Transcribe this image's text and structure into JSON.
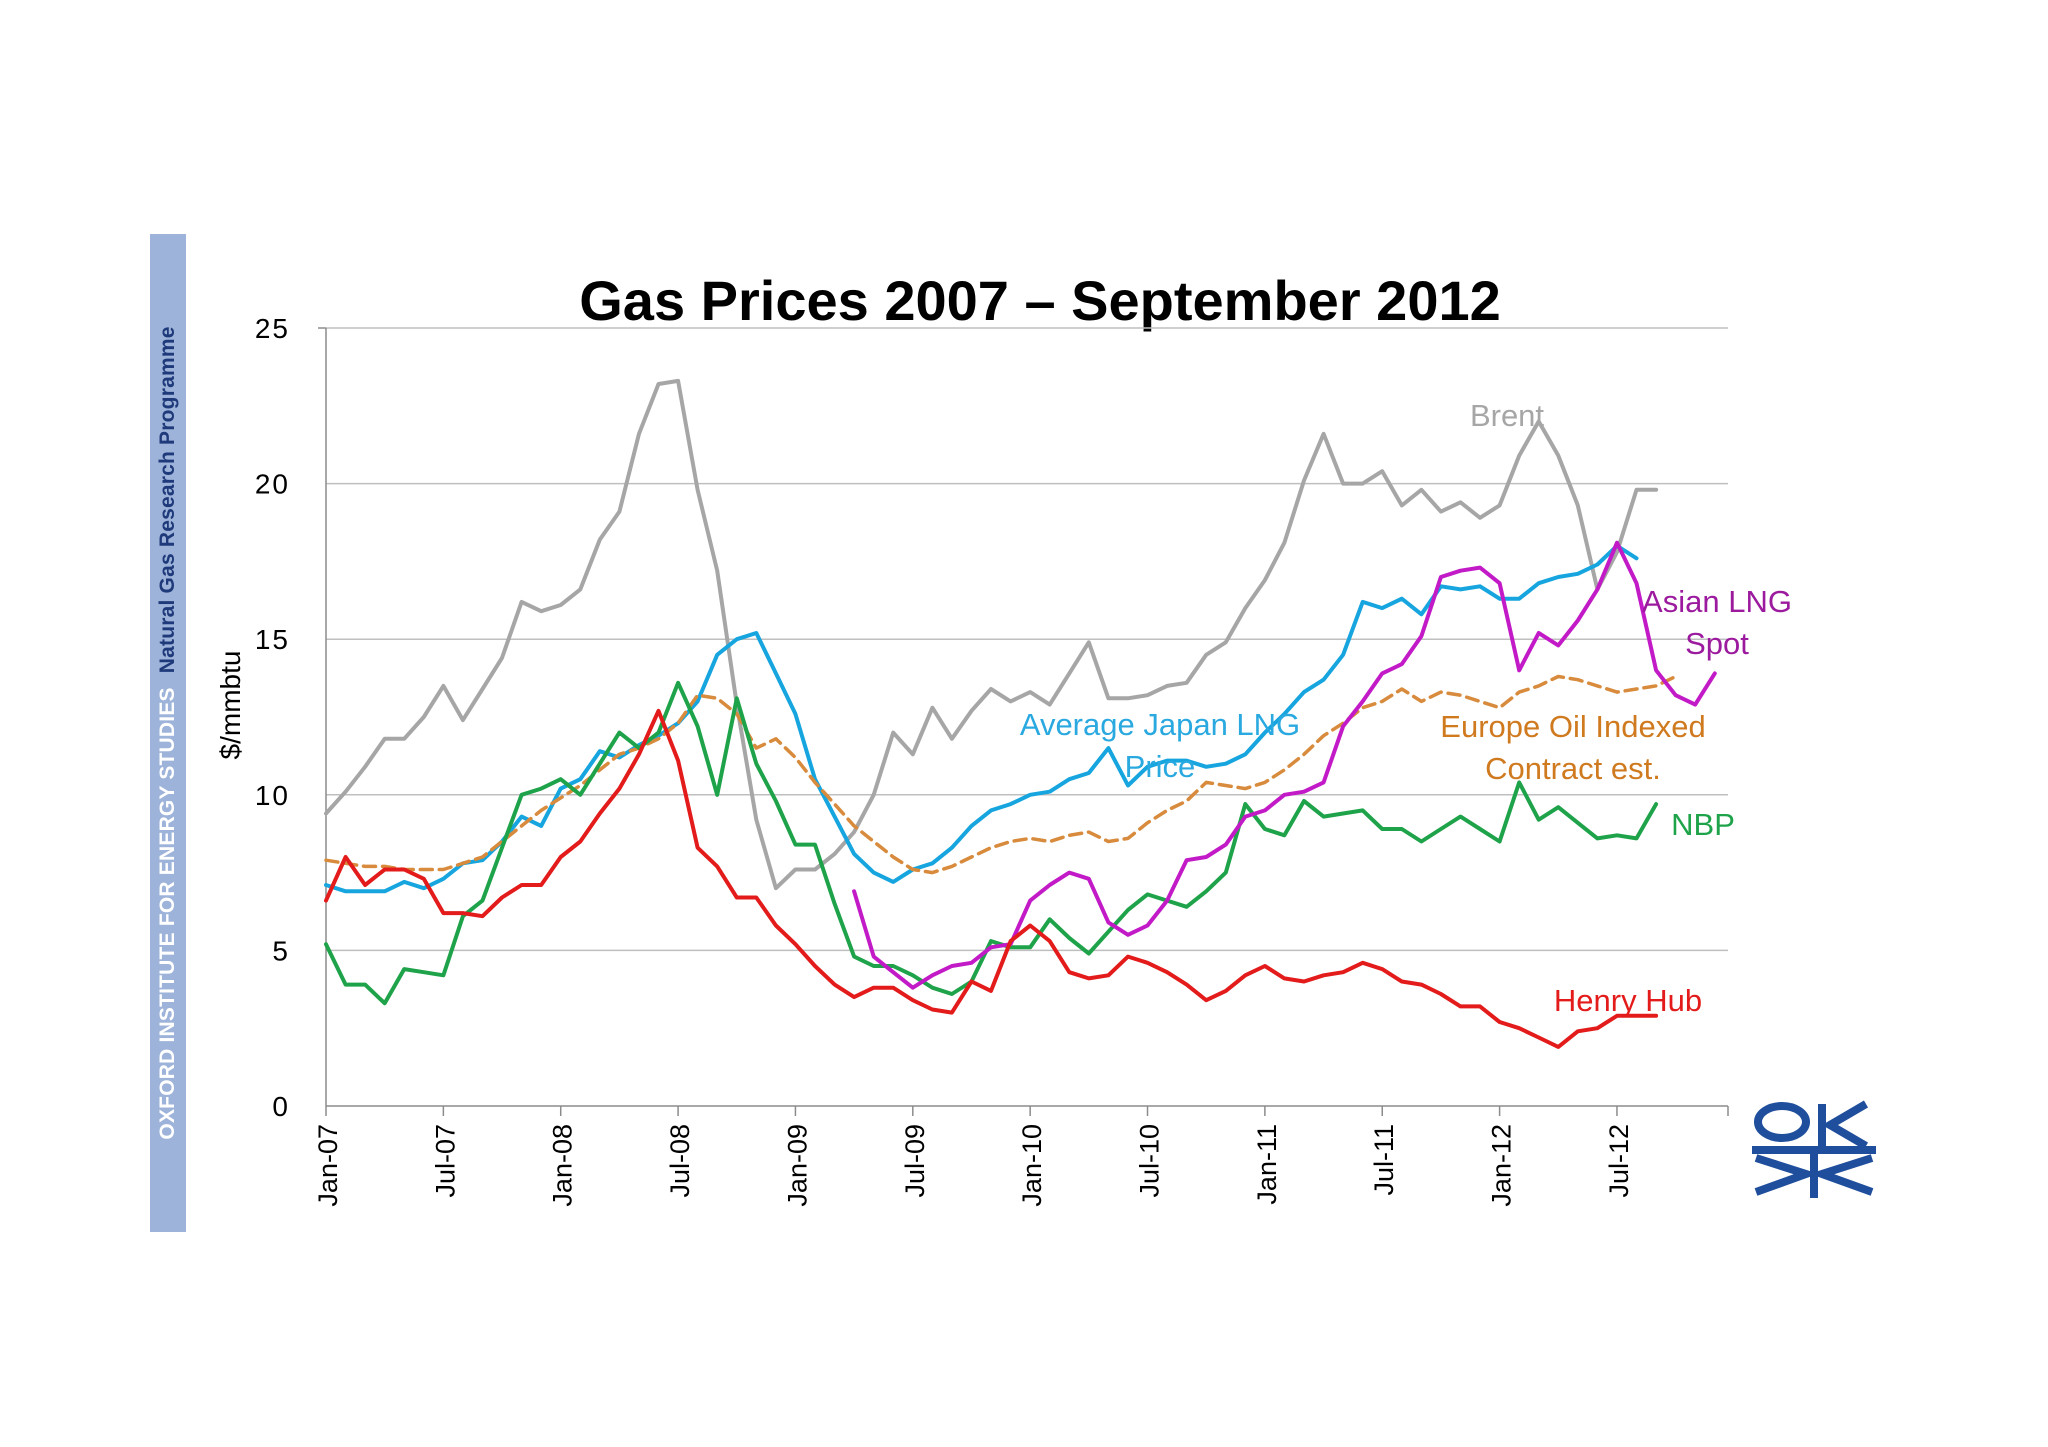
{
  "sidebar": {
    "org": "OXFORD INSTITUTE FOR ENERGY STUDIES",
    "programme": "Natural Gas Research Programme"
  },
  "chart_data": {
    "type": "line",
    "title": "Gas Prices 2007 – September 2012",
    "ylabel": "$/mmbtu",
    "xlabel": "",
    "ylim": [
      0,
      25
    ],
    "yticks": [
      0,
      5,
      10,
      15,
      20,
      25
    ],
    "xticks": [
      "Jan-07",
      "Jul-07",
      "Jan-08",
      "Jul-08",
      "Jan-09",
      "Jul-09",
      "Jan-10",
      "Jul-10",
      "Jan-11",
      "Jul-11",
      "Jan-12",
      "Jul-12"
    ],
    "grid": true,
    "series": [
      {
        "name": "Brent",
        "label_lines": [
          "Brent"
        ],
        "color": "#a6a6a6",
        "dashed": false,
        "start": "2007-01",
        "values": [
          9.4,
          10.1,
          10.9,
          11.8,
          11.8,
          12.5,
          13.5,
          12.4,
          13.4,
          14.4,
          16.2,
          15.9,
          16.1,
          16.6,
          18.2,
          19.1,
          21.6,
          23.2,
          23.3,
          19.8,
          17.2,
          12.9,
          9.2,
          7.0,
          7.6,
          7.6,
          8.1,
          8.8,
          10.0,
          12.0,
          11.3,
          12.8,
          11.8,
          12.7,
          13.4,
          13.0,
          13.3,
          12.9,
          13.9,
          14.9,
          13.1,
          13.1,
          13.2,
          13.5,
          13.6,
          14.5,
          14.9,
          16.0,
          16.9,
          18.1,
          20.1,
          21.6,
          20.0,
          20.0,
          20.4,
          19.3,
          19.8,
          19.1,
          19.4,
          18.9,
          19.3,
          20.9,
          22.0,
          20.9,
          19.3,
          16.6,
          17.8,
          19.8,
          19.8
        ]
      },
      {
        "name": "Average Japan LNG Price",
        "label_lines": [
          "Average Japan LNG",
          "Price"
        ],
        "color": "#16a5de",
        "dashed": false,
        "start": "2007-01",
        "values": [
          7.1,
          6.9,
          6.9,
          6.9,
          7.2,
          7.0,
          7.3,
          7.8,
          7.9,
          8.5,
          9.3,
          9.0,
          10.2,
          10.5,
          11.4,
          11.2,
          11.6,
          11.9,
          12.3,
          13.0,
          14.5,
          15.0,
          15.2,
          13.9,
          12.6,
          10.5,
          9.3,
          8.1,
          7.5,
          7.2,
          7.6,
          7.8,
          8.3,
          9.0,
          9.5,
          9.7,
          10.0,
          10.1,
          10.5,
          10.7,
          11.5,
          10.3,
          10.9,
          11.1,
          11.1,
          10.9,
          11.0,
          11.3,
          12.0,
          12.6,
          13.3,
          13.7,
          14.5,
          16.2,
          16.0,
          16.3,
          15.8,
          16.7,
          16.6,
          16.7,
          16.3,
          16.3,
          16.8,
          17.0,
          17.1,
          17.4,
          18.0,
          17.6
        ]
      },
      {
        "name": "Europe Oil Indexed Contract est.",
        "label_lines": [
          "Europe Oil Indexed",
          "Contract est."
        ],
        "color": "#d88b3d",
        "dashed": true,
        "start": "2007-01",
        "values": [
          7.9,
          7.8,
          7.7,
          7.7,
          7.6,
          7.6,
          7.6,
          7.8,
          8.0,
          8.5,
          9.0,
          9.5,
          9.9,
          10.3,
          10.8,
          11.3,
          11.5,
          11.8,
          12.3,
          13.2,
          13.1,
          12.6,
          11.5,
          11.8,
          11.2,
          10.4,
          9.7,
          9.0,
          8.5,
          8.0,
          7.6,
          7.5,
          7.7,
          8.0,
          8.3,
          8.5,
          8.6,
          8.5,
          8.7,
          8.8,
          8.5,
          8.6,
          9.1,
          9.5,
          9.8,
          10.4,
          10.3,
          10.2,
          10.4,
          10.8,
          11.3,
          11.9,
          12.3,
          12.8,
          13.0,
          13.4,
          13.0,
          13.3,
          13.2,
          13.0,
          12.8,
          13.3,
          13.5,
          13.8,
          13.7,
          13.5,
          13.3,
          13.4,
          13.5,
          13.8
        ]
      },
      {
        "name": "NBP",
        "label_lines": [
          "NBP"
        ],
        "color": "#1fa34a",
        "dashed": false,
        "start": "2007-01",
        "values": [
          5.2,
          3.9,
          3.9,
          3.3,
          4.4,
          4.3,
          4.2,
          6.1,
          6.6,
          8.3,
          10.0,
          10.2,
          10.5,
          10.0,
          11.0,
          12.0,
          11.5,
          12.0,
          13.6,
          12.2,
          10.0,
          13.1,
          11.0,
          9.8,
          8.4,
          8.4,
          6.5,
          4.8,
          4.5,
          4.5,
          4.2,
          3.8,
          3.6,
          4.0,
          5.3,
          5.1,
          5.1,
          6.0,
          5.4,
          4.9,
          5.6,
          6.3,
          6.8,
          6.6,
          6.4,
          6.9,
          7.5,
          9.7,
          8.9,
          8.7,
          9.8,
          9.3,
          9.4,
          9.5,
          8.9,
          8.9,
          8.5,
          8.9,
          9.3,
          8.9,
          8.5,
          10.4,
          9.2,
          9.6,
          9.1,
          8.6,
          8.7,
          8.6,
          9.7
        ]
      },
      {
        "name": "Asian LNG Spot",
        "label_lines": [
          "Asian LNG",
          "Spot"
        ],
        "color": "#c21ac7",
        "dashed": false,
        "start": "2009-04",
        "values": [
          6.9,
          4.8,
          4.3,
          3.8,
          4.2,
          4.5,
          4.6,
          5.1,
          5.2,
          6.6,
          7.1,
          7.5,
          7.3,
          5.9,
          5.5,
          5.8,
          6.6,
          7.9,
          8.0,
          8.4,
          9.3,
          9.5,
          10.0,
          10.1,
          10.4,
          12.2,
          13.0,
          13.9,
          14.2,
          15.1,
          17.0,
          17.2,
          17.3,
          16.8,
          14.0,
          15.2,
          14.8,
          15.6,
          16.6,
          18.1,
          16.8,
          14.0,
          13.2,
          12.9,
          13.9
        ]
      },
      {
        "name": "Henry Hub",
        "label_lines": [
          "Henry Hub"
        ],
        "color": "#e31b1b",
        "dashed": false,
        "start": "2007-01",
        "values": [
          6.6,
          8.0,
          7.1,
          7.6,
          7.6,
          7.3,
          6.2,
          6.2,
          6.1,
          6.7,
          7.1,
          7.1,
          8.0,
          8.5,
          9.4,
          10.2,
          11.3,
          12.7,
          11.1,
          8.3,
          7.7,
          6.7,
          6.7,
          5.8,
          5.2,
          4.5,
          3.9,
          3.5,
          3.8,
          3.8,
          3.4,
          3.1,
          3.0,
          4.0,
          3.7,
          5.3,
          5.8,
          5.3,
          4.3,
          4.1,
          4.2,
          4.8,
          4.6,
          4.3,
          3.9,
          3.4,
          3.7,
          4.2,
          4.5,
          4.1,
          4.0,
          4.2,
          4.3,
          4.6,
          4.4,
          4.0,
          3.9,
          3.6,
          3.2,
          3.2,
          2.7,
          2.5,
          2.2,
          1.9,
          2.4,
          2.5,
          2.9,
          2.9,
          2.9
        ]
      }
    ]
  },
  "colors": {
    "sidebar_bg": "#9db3d9",
    "sidebar_text": "#ffffff",
    "sidebar_highlight": "#1f3a7a",
    "logo": "#1f4e9c",
    "gridline": "#bfbfbf"
  }
}
